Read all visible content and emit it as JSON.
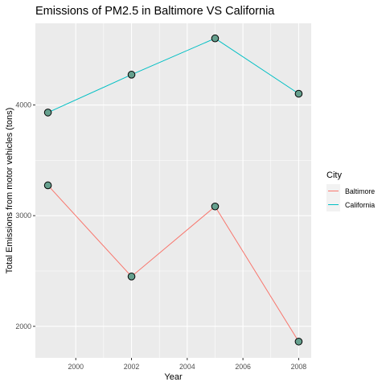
{
  "chart_data": {
    "type": "line",
    "title": "Emissions of PM2.5 in Baltimore VS California",
    "xlabel": "Year",
    "ylabel": "Total Emissions from motor vehicles (tons)",
    "x": [
      1999,
      2002,
      2005,
      2008
    ],
    "xlim": [
      1998.55,
      2008.45
    ],
    "ylim": [
      1715,
      4738
    ],
    "xticks": [
      2000,
      2002,
      2004,
      2006,
      2008
    ],
    "yticks": [
      2000,
      3000,
      4000
    ],
    "grid": true,
    "legend": {
      "title": "City",
      "placement": "right"
    },
    "series": [
      {
        "name": "Baltimore",
        "color": "#F8766D",
        "values": [
          3274,
          2450,
          3083,
          1862
        ]
      },
      {
        "name": "California",
        "color": "#00BFC4",
        "values": [
          3932,
          4274,
          4602,
          4102
        ]
      }
    ],
    "point_fill": "#66A08E",
    "panel_background": "#EBEBEB"
  }
}
